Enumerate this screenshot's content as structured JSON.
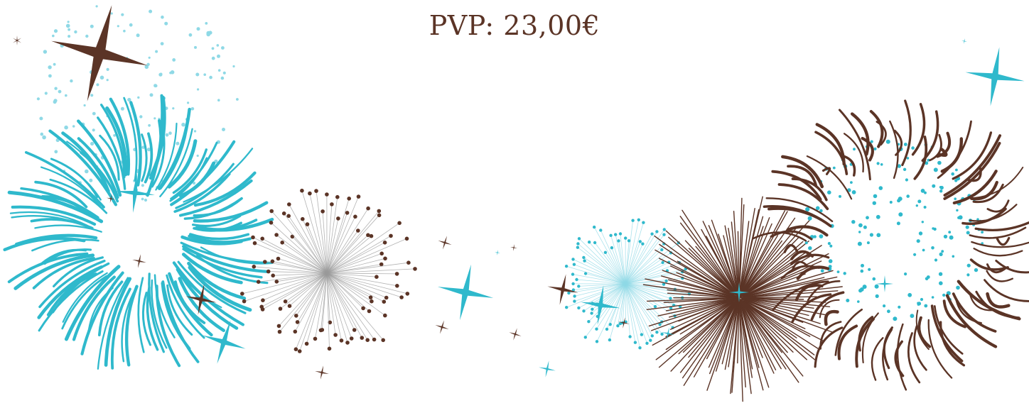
{
  "price_label": "PVP: 23,00€",
  "colors": {
    "brown": "#5b3426",
    "turquoise": "#2fb9cc",
    "light_turquoise": "#8fd9e6",
    "text": "#5b3426",
    "background": "#ffffff"
  },
  "decorations": [
    {
      "kind": "firework-burst",
      "color": "turquoise",
      "style": "streaks"
    },
    {
      "kind": "firework-burst",
      "color": "light_turquoise",
      "style": "dots"
    },
    {
      "kind": "firework-burst",
      "color": "brown",
      "style": "dotted-rays"
    },
    {
      "kind": "firework-burst",
      "color": "turquoise",
      "style": "dotted-rays"
    },
    {
      "kind": "firework-burst",
      "color": "brown",
      "style": "rays"
    },
    {
      "kind": "firework-burst",
      "color": "brown",
      "style": "streaks"
    },
    {
      "kind": "sparkle-star",
      "color": "brown"
    },
    {
      "kind": "sparkle-star",
      "color": "turquoise"
    }
  ]
}
